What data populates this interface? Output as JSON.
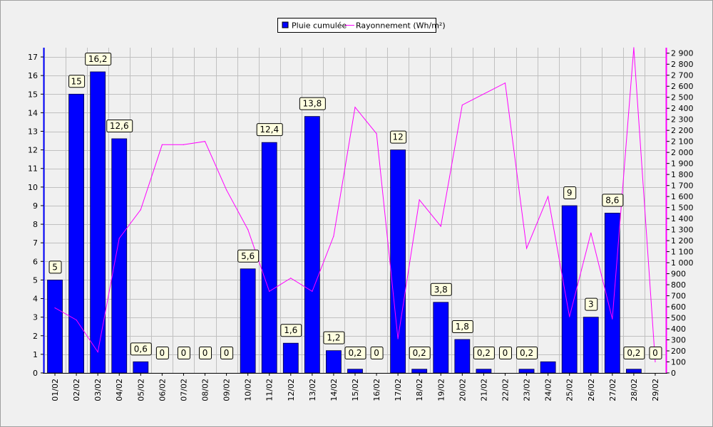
{
  "chart_data": {
    "type": "bar",
    "categories": [
      "01/02",
      "02/02",
      "03/02",
      "04/02",
      "05/02",
      "06/02",
      "07/02",
      "08/02",
      "09/02",
      "10/02",
      "11/02",
      "12/02",
      "13/02",
      "14/02",
      "15/02",
      "16/02",
      "17/02",
      "18/02",
      "19/02",
      "20/02",
      "21/02",
      "22/02",
      "23/02",
      "24/02",
      "25/02",
      "26/02",
      "27/02",
      "28/02",
      "29/02"
    ],
    "series": [
      {
        "name": "Pluie cumulée",
        "type": "bar",
        "axis": "left",
        "color": "#0000ff",
        "values": [
          5,
          15,
          16.2,
          12.6,
          0.6,
          0,
          0,
          0,
          0,
          5.6,
          12.4,
          1.6,
          13.8,
          1.2,
          0.2,
          0,
          12,
          0.2,
          3.8,
          1.8,
          0.2,
          0,
          0.2,
          0.6,
          9,
          3,
          8.6,
          0.2,
          0
        ],
        "labels": [
          "5",
          "15",
          "16,2",
          "12,6",
          "0,6",
          "0",
          "0",
          "0",
          "0",
          "5,6",
          "12,4",
          "1,6",
          "13,8",
          "1,2",
          "0,2",
          "0",
          "12",
          "0,2",
          "3,8",
          "1,8",
          "0,2",
          "0",
          "0,2",
          "",
          "9",
          "3",
          "8,6",
          "0,2",
          "0"
        ]
      },
      {
        "name": "Rayonnement (Wh/m²)",
        "type": "line",
        "axis": "right",
        "color": "#ff00ff",
        "values": [
          590,
          480,
          190,
          1220,
          1480,
          2070,
          2070,
          2100,
          1660,
          1300,
          740,
          860,
          740,
          1240,
          2410,
          2170,
          310,
          1570,
          1330,
          2430,
          2530,
          2630,
          1130,
          1600,
          510,
          1270,
          490,
          2950,
          100
        ]
      }
    ],
    "y_left": {
      "lim": [
        0,
        17.5
      ],
      "ticks": [
        "0",
        "1",
        "2",
        "3",
        "4",
        "5",
        "6",
        "7",
        "8",
        "9",
        "10",
        "11",
        "12",
        "13",
        "14",
        "15",
        "16",
        "17"
      ]
    },
    "y_right": {
      "lim": [
        0,
        2950
      ],
      "ticks": [
        "0",
        "100",
        "200",
        "300",
        "400",
        "500",
        "600",
        "700",
        "800",
        "900",
        "1 000",
        "1 100",
        "1 200",
        "1 300",
        "1 400",
        "1 500",
        "1 600",
        "1 700",
        "1 800",
        "1 900",
        "2 000",
        "2 100",
        "2 200",
        "2 300",
        "2 400",
        "2 500",
        "2 600",
        "2 700",
        "2 800",
        "2 900"
      ]
    },
    "grid": true,
    "legend": "top-center",
    "colors": {
      "bar": "#0000ff",
      "line": "#ff00ff",
      "grid": "#c0c0c0",
      "label_bg": "#ffffe0",
      "plot_bg": "#f0f0f0"
    }
  }
}
